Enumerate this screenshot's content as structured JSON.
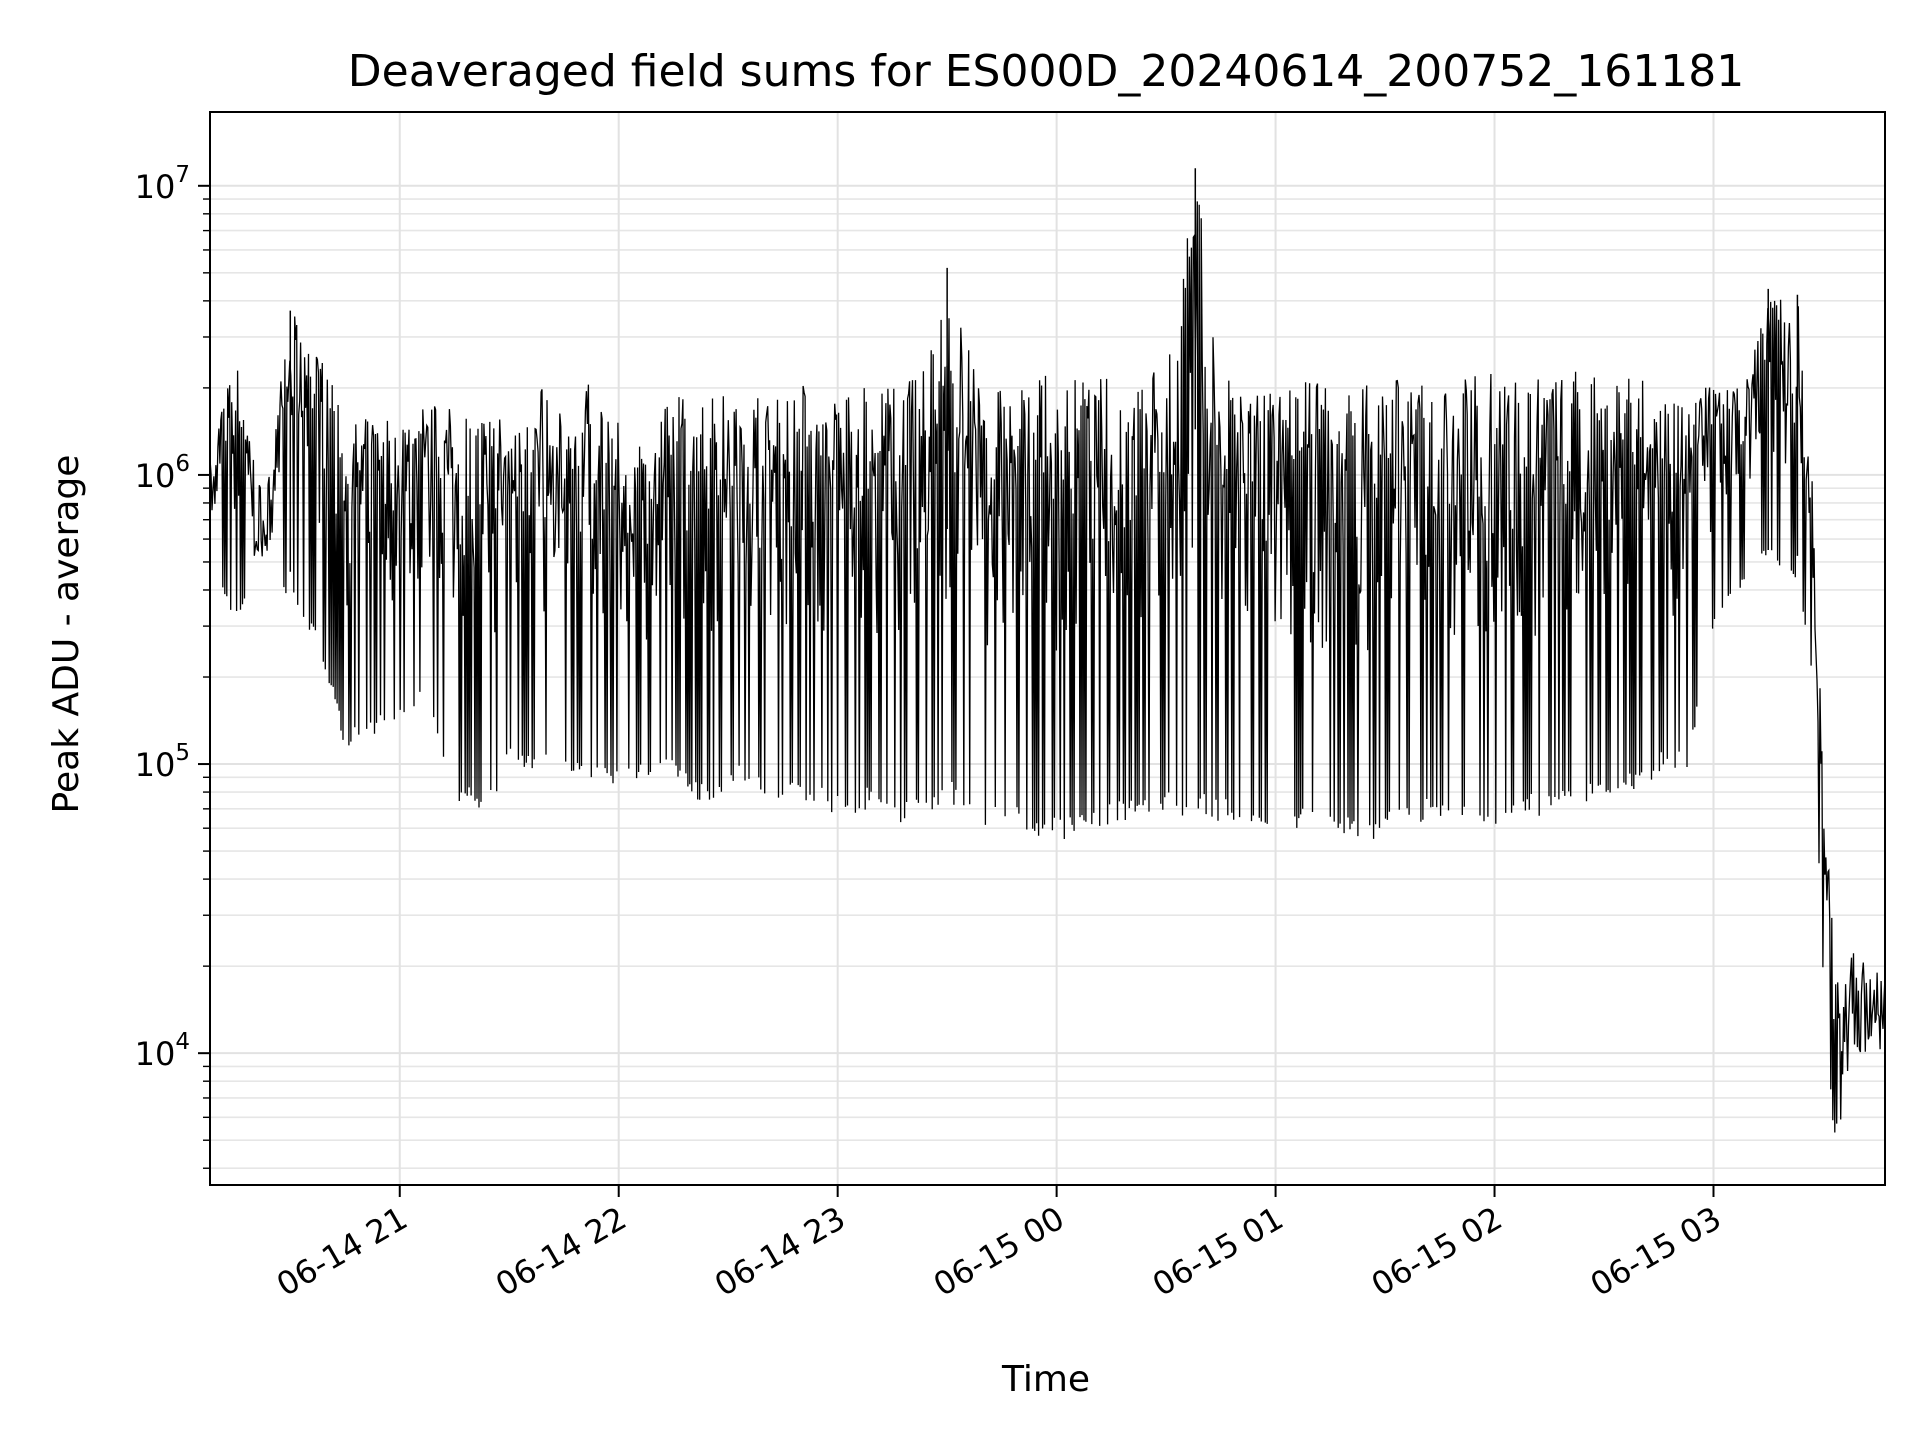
{
  "chart_data": {
    "type": "line",
    "title": "Deaveraged field sums for ES000D_20240614_200752_161181",
    "xlabel": "Time",
    "ylabel": "Peak ADU - average",
    "yscale": "log",
    "ylim": [
      3500,
      18000000
    ],
    "xlim": [
      "2024-06-14 20:08",
      "2024-06-15 03:47"
    ],
    "grid": true,
    "color": "#000000",
    "x_ticks": [
      {
        "t": "2024-06-14 21:00",
        "label": "06-14 21"
      },
      {
        "t": "2024-06-14 22:00",
        "label": "06-14 22"
      },
      {
        "t": "2024-06-14 23:00",
        "label": "06-14 23"
      },
      {
        "t": "2024-06-15 00:00",
        "label": "06-15 00"
      },
      {
        "t": "2024-06-15 01:00",
        "label": "06-15 01"
      },
      {
        "t": "2024-06-15 02:00",
        "label": "06-15 02"
      },
      {
        "t": "2024-06-15 03:00",
        "label": "06-15 03"
      }
    ],
    "y_ticks": [
      {
        "value": 10000,
        "base": "10",
        "exp": "4"
      },
      {
        "value": 100000,
        "base": "10",
        "exp": "5"
      },
      {
        "value": 1000000,
        "base": "10",
        "exp": "6"
      },
      {
        "value": 10000000,
        "base": "10",
        "exp": "7"
      }
    ],
    "series": [
      {
        "x": [
          "2024-06-14 20:08",
          "2024-06-14 20:15",
          "2024-06-14 20:23",
          "2024-06-14 20:30",
          "2024-06-14 20:38",
          "2024-06-14 20:45",
          "2024-06-14 20:53",
          "2024-06-14 21:00",
          "2024-06-14 21:08",
          "2024-06-14 21:15",
          "2024-06-14 21:23",
          "2024-06-14 21:30",
          "2024-06-14 21:38",
          "2024-06-14 21:45",
          "2024-06-14 21:53",
          "2024-06-14 22:00",
          "2024-06-14 22:08",
          "2024-06-14 22:15",
          "2024-06-14 22:23",
          "2024-06-14 22:30",
          "2024-06-14 22:38",
          "2024-06-14 22:45",
          "2024-06-14 22:53",
          "2024-06-14 23:00",
          "2024-06-14 23:08",
          "2024-06-14 23:15",
          "2024-06-14 23:23",
          "2024-06-14 23:30",
          "2024-06-14 23:38",
          "2024-06-14 23:45",
          "2024-06-14 23:53",
          "2024-06-15 00:00",
          "2024-06-15 00:08",
          "2024-06-15 00:15",
          "2024-06-15 00:23",
          "2024-06-15 00:30",
          "2024-06-15 00:38",
          "2024-06-15 00:45",
          "2024-06-15 00:53",
          "2024-06-15 01:00",
          "2024-06-15 01:08",
          "2024-06-15 01:15",
          "2024-06-15 01:23",
          "2024-06-15 01:30",
          "2024-06-15 01:38",
          "2024-06-15 01:45",
          "2024-06-15 01:53",
          "2024-06-15 02:00",
          "2024-06-15 02:08",
          "2024-06-15 02:15",
          "2024-06-15 02:23",
          "2024-06-15 02:30",
          "2024-06-15 02:38",
          "2024-06-15 02:45",
          "2024-06-15 02:53",
          "2024-06-15 03:00",
          "2024-06-15 03:08",
          "2024-06-15 03:15",
          "2024-06-15 03:23",
          "2024-06-15 03:27",
          "2024-06-15 03:30",
          "2024-06-15 03:33",
          "2024-06-15 03:38",
          "2024-06-15 03:42",
          "2024-06-15 03:47"
        ],
        "max": [
          1200000,
          2600000,
          800000,
          3700000,
          2800000,
          1500000,
          1600000,
          1700000,
          1800000,
          1800000,
          1700000,
          1800000,
          2200000,
          1600000,
          2200000,
          1500000,
          1400000,
          2000000,
          1900000,
          2000000,
          2000000,
          2100000,
          2100000,
          2100000,
          2100000,
          2100000,
          2200000,
          5200000,
          2200000,
          2100000,
          2200000,
          2200000,
          2200000,
          2200000,
          2300000,
          2400000,
          11500000,
          2200000,
          2200000,
          2100000,
          2100000,
          2100000,
          2100000,
          2200000,
          2300000,
          2100000,
          2200000,
          2300000,
          2200000,
          2200000,
          2300000,
          2200000,
          2200000,
          2200000,
          2100000,
          2000000,
          2000000,
          4400000,
          4200000,
          1000000,
          100000,
          22000,
          24000,
          21000,
          20000
        ],
        "min": [
          500000,
          300000,
          450000,
          350000,
          250000,
          110000,
          120000,
          140000,
          160000,
          75000,
          60000,
          100000,
          90000,
          90000,
          85000,
          80000,
          90000,
          85000,
          70000,
          80000,
          80000,
          75000,
          70000,
          65000,
          65000,
          60000,
          65000,
          65000,
          60000,
          60000,
          55000,
          52000,
          55000,
          60000,
          65000,
          65000,
          60000,
          60000,
          55000,
          55000,
          60000,
          55000,
          50000,
          55000,
          60000,
          60000,
          60000,
          60000,
          65000,
          65000,
          70000,
          75000,
          80000,
          90000,
          90000,
          300000,
          400000,
          500000,
          400000,
          200000,
          18000,
          5000,
          7000,
          8000,
          9000
        ]
      }
    ]
  }
}
